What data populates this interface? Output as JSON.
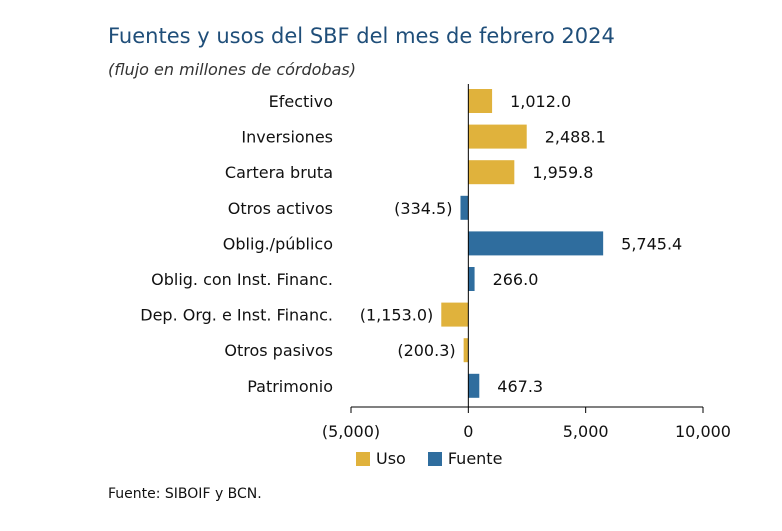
{
  "title": "Fuentes y usos del SBF del mes de febrero 2024",
  "subtitle": "(flujo en millones de córdobas)",
  "source": "Fuente: SIBOIF y BCN.",
  "colors": {
    "uso": "#e0b23c",
    "fuente": "#2f6d9e",
    "axis": "#000000"
  },
  "legend": [
    {
      "label": "Uso",
      "color": "#e0b23c"
    },
    {
      "label": "Fuente",
      "color": "#2f6d9e"
    }
  ],
  "chart_data": {
    "type": "bar",
    "orientation": "horizontal",
    "categories": [
      "Efectivo",
      "Inversiones",
      "Cartera bruta",
      "Otros activos",
      "Oblig./público",
      "Oblig. con Inst. Financ.",
      "Dep. Org. e Inst. Financ.",
      "Otros pasivos",
      "Patrimonio"
    ],
    "values": [
      1012.0,
      2488.1,
      1959.8,
      -334.5,
      5745.4,
      266.0,
      -1153.0,
      -200.3,
      467.3
    ],
    "value_labels": [
      "1,012.0",
      "2,488.1",
      "1,959.8",
      "(334.5)",
      "5,745.4",
      "266.0",
      "(1,153.0)",
      "(200.3)",
      "467.3"
    ],
    "group": [
      "Uso",
      "Uso",
      "Uso",
      "Fuente",
      "Fuente",
      "Fuente",
      "Uso",
      "Uso",
      "Fuente"
    ],
    "xlim": [
      -5000,
      10000
    ],
    "xticks": [
      -5000,
      0,
      5000,
      10000
    ],
    "xtick_labels": [
      "(5,000)",
      "0",
      "5,000",
      "10,000"
    ],
    "grid": false,
    "legend_position": "bottom"
  }
}
